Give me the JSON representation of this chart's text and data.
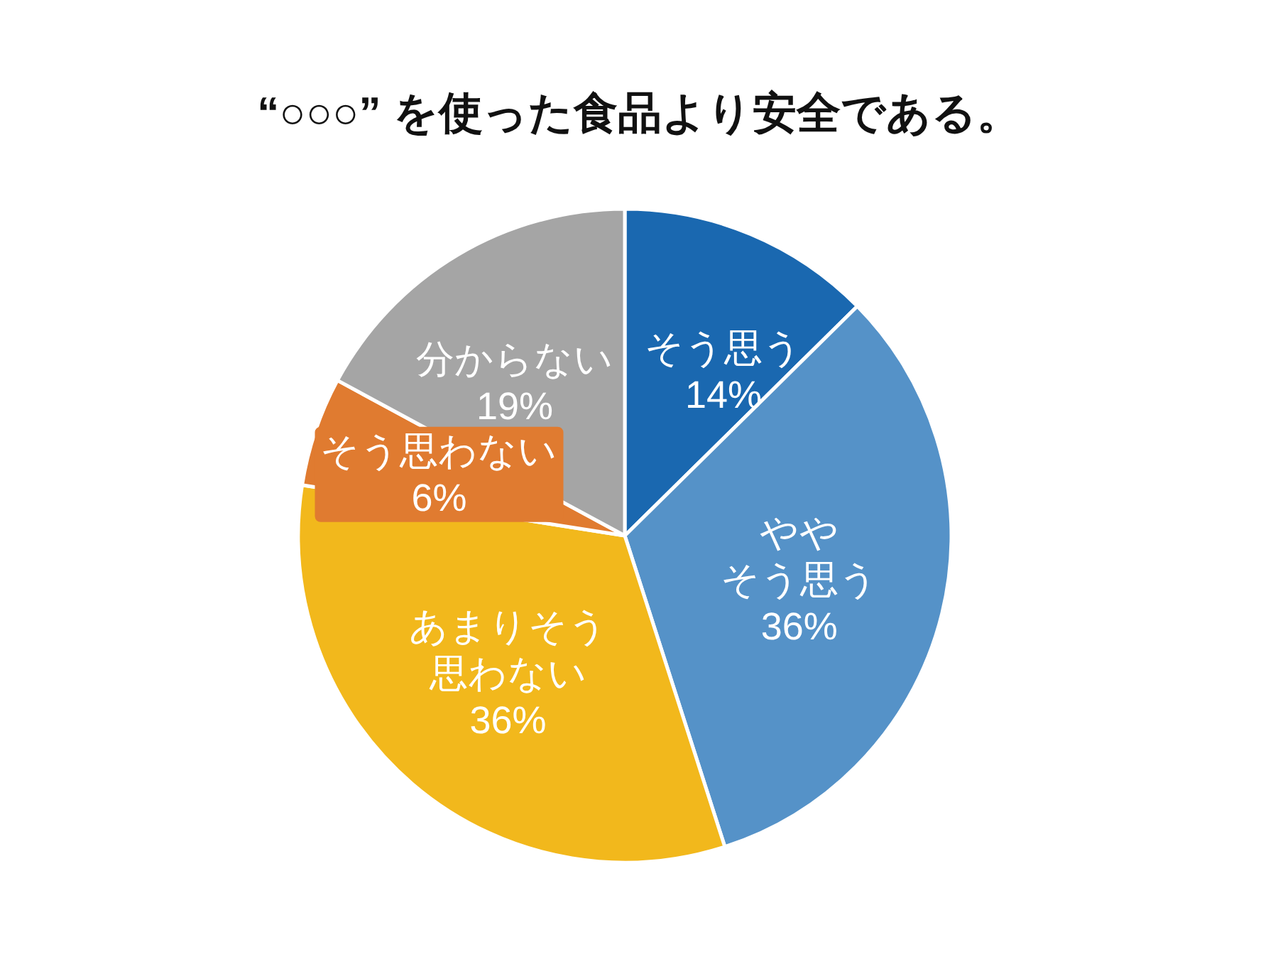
{
  "chart_data": {
    "type": "pie",
    "title": "“○○○” を使った食品より安全である。",
    "categories": [
      "そう思う",
      "ややそう思う",
      "あまりそう思わない",
      "そう思わない",
      "分からない"
    ],
    "values": [
      14,
      36,
      36,
      6,
      19
    ],
    "value_labels": [
      "14%",
      "36%",
      "36%",
      "6%",
      "19%"
    ],
    "colors": [
      "#1a68b0",
      "#5592c8",
      "#f2b81c",
      "#e07b30",
      "#a5a5a5"
    ]
  }
}
